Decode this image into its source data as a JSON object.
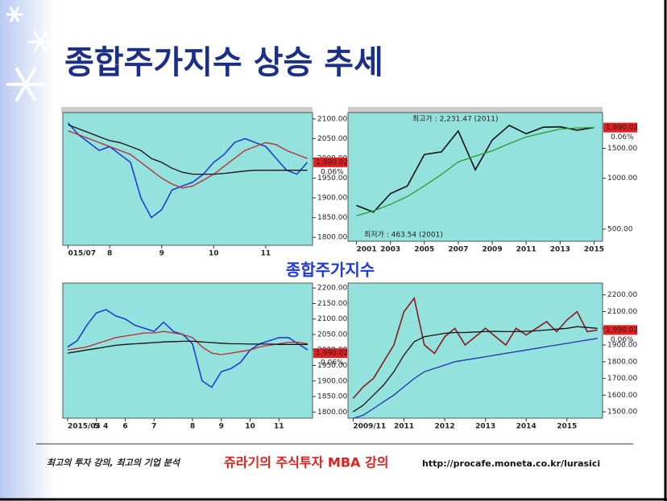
{
  "title": "종합주가지수 상승 추세",
  "panel_label": "종합주가지수",
  "footer": {
    "tagline": "최고의 투자 강의, 최고의 기업 분석",
    "course": "쥬라기의 주식투자 MBA 강의",
    "url": "http://procafe.moneta.co.kr/lurasici"
  },
  "chart_data": [
    {
      "type": "line",
      "categories": [
        "015/07",
        null,
        null,
        null,
        "8",
        null,
        null,
        null,
        null,
        "9",
        null,
        null,
        null,
        null,
        "10",
        null,
        null,
        null,
        null,
        "11",
        null,
        null,
        null,
        null
      ],
      "series": [
        {
          "name": "price",
          "color": "#1f3fd0",
          "values": [
            2090,
            2060,
            2040,
            2020,
            2030,
            2010,
            1990,
            1900,
            1850,
            1870,
            1920,
            1930,
            1940,
            1960,
            1990,
            2010,
            2040,
            2050,
            2040,
            2030,
            2000,
            1970,
            1960,
            1990
          ]
        },
        {
          "name": "ma-short",
          "color": "#c0282a",
          "values": [
            2070,
            2060,
            2050,
            2040,
            2030,
            2020,
            2010,
            1990,
            1970,
            1950,
            1935,
            1925,
            1930,
            1945,
            1960,
            1980,
            2000,
            2020,
            2030,
            2040,
            2035,
            2020,
            2010,
            2000
          ]
        },
        {
          "name": "ma-long",
          "color": "#111111",
          "values": [
            2085,
            2075,
            2065,
            2055,
            2045,
            2040,
            2030,
            2020,
            2000,
            1990,
            1975,
            1965,
            1960,
            1960,
            1960,
            1962,
            1965,
            1968,
            1970,
            1970,
            1970,
            1970,
            1970,
            1970
          ]
        }
      ],
      "ylim": [
        1780,
        2116
      ],
      "yticks": [
        {
          "value": 2100,
          "label": "2100.00"
        },
        {
          "value": 2050,
          "label": "2050.00"
        },
        {
          "value": 2000,
          "label": "2000.00"
        },
        {
          "value": 1950,
          "label": "1950.00"
        },
        {
          "value": 1900,
          "label": "1900.00"
        },
        {
          "value": 1850,
          "label": "1850.00"
        },
        {
          "value": 1800,
          "label": "1800.00"
        }
      ],
      "price_label": {
        "value": 1990.02,
        "label": "1,990.02"
      },
      "price_change": "0.06%"
    },
    {
      "type": "line",
      "log_scale": true,
      "categories": [
        "2001",
        null,
        "2003",
        null,
        "2005",
        null,
        "2007",
        null,
        "2009",
        null,
        "2011",
        null,
        "2013",
        null,
        "2015"
      ],
      "series": [
        {
          "name": "price",
          "color": "#111111",
          "values": [
            690,
            630,
            810,
            900,
            1380,
            1430,
            1900,
            1120,
            1680,
            2050,
            1830,
            2000,
            2010,
            1920,
            1990
          ]
        },
        {
          "name": "ma",
          "color": "#2a9a2a",
          "values": [
            600,
            640,
            700,
            780,
            900,
            1050,
            1250,
            1350,
            1450,
            1600,
            1750,
            1850,
            1950,
            1980,
            1990
          ]
        }
      ],
      "ylim": [
        424,
        2440
      ],
      "yticks": [
        {
          "value": 2000,
          "label": "2000.00"
        },
        {
          "value": 1500,
          "label": "1500.00"
        },
        {
          "value": 1000,
          "label": "1000.00"
        },
        {
          "value": 500,
          "label": "500.00"
        }
      ],
      "annotations": [
        "최고가 : 2,231.47 (2011)",
        "최저가 : 463.54 (2001)"
      ],
      "price_label": {
        "value": 1990.02,
        "label": "1,990.02"
      },
      "price_change": "0.06%"
    },
    {
      "type": "line",
      "categories": [
        "2015/03 4",
        null,
        null,
        "5",
        null,
        null,
        "6",
        null,
        null,
        "7",
        null,
        null,
        null,
        "8",
        null,
        null,
        "9",
        null,
        null,
        "10",
        null,
        null,
        "11",
        null,
        null,
        null
      ],
      "series": [
        {
          "name": "price",
          "color": "#1f3fd0",
          "values": [
            2010,
            2030,
            2080,
            2120,
            2130,
            2110,
            2100,
            2080,
            2070,
            2060,
            2090,
            2060,
            2050,
            2020,
            1900,
            1880,
            1930,
            1940,
            1960,
            2000,
            2020,
            2030,
            2040,
            2040,
            2020,
            2000
          ]
        },
        {
          "name": "ma-short",
          "color": "#c0282a",
          "values": [
            2000,
            2005,
            2010,
            2020,
            2030,
            2040,
            2045,
            2050,
            2055,
            2055,
            2060,
            2055,
            2050,
            2040,
            2010,
            1990,
            1985,
            1990,
            1995,
            2000,
            2010,
            2015,
            2020,
            2025,
            2025,
            2020
          ]
        },
        {
          "name": "ma-long",
          "color": "#111111",
          "values": [
            1990,
            1995,
            2000,
            2005,
            2010,
            2015,
            2018,
            2020,
            2022,
            2024,
            2026,
            2027,
            2028,
            2028,
            2026,
            2024,
            2022,
            2020,
            2020,
            2019,
            2019,
            2019,
            2018,
            2018,
            2018,
            2018
          ]
        }
      ],
      "ylim": [
        1780,
        2216
      ],
      "yticks": [
        {
          "value": 2200,
          "label": "2200.00"
        },
        {
          "value": 2150,
          "label": "2150.00"
        },
        {
          "value": 2100,
          "label": "2100.00"
        },
        {
          "value": 2050,
          "label": "2050.00"
        },
        {
          "value": 2000,
          "label": "2000.00"
        },
        {
          "value": 1950,
          "label": "1950.00"
        },
        {
          "value": 1900,
          "label": "1900.00"
        },
        {
          "value": 1850,
          "label": "1850.00"
        },
        {
          "value": 1800,
          "label": "1800.00"
        }
      ],
      "price_label": {
        "value": 1990.02,
        "label": "1,990.02"
      },
      "price_change": "0.06%"
    },
    {
      "type": "line",
      "categories": [
        "2009/11",
        null,
        null,
        null,
        null,
        "2011",
        null,
        null,
        null,
        "2012",
        null,
        null,
        null,
        "2013",
        null,
        null,
        null,
        "2014",
        null,
        null,
        null,
        "2015",
        null,
        null,
        null
      ],
      "series": [
        {
          "name": "price",
          "color": "#8a1a1a",
          "values": [
            1580,
            1650,
            1700,
            1800,
            1900,
            2100,
            2180,
            1900,
            1850,
            1950,
            2000,
            1900,
            1950,
            2000,
            1950,
            1900,
            2000,
            1960,
            2000,
            2040,
            1980,
            2050,
            2100,
            1980,
            1990
          ]
        },
        {
          "name": "ma-long",
          "color": "#111111",
          "values": [
            1500,
            1540,
            1600,
            1660,
            1740,
            1840,
            1920,
            1950,
            1960,
            1970,
            1975,
            1975,
            1978,
            1980,
            1982,
            1980,
            1980,
            1982,
            1985,
            1990,
            1995,
            2000,
            2010,
            2005,
            2000
          ]
        },
        {
          "name": "ma-slow",
          "color": "#2233aa",
          "values": [
            1460,
            1480,
            1520,
            1560,
            1600,
            1650,
            1700,
            1740,
            1760,
            1780,
            1800,
            1810,
            1820,
            1830,
            1840,
            1850,
            1860,
            1870,
            1880,
            1890,
            1900,
            1910,
            1920,
            1930,
            1940
          ]
        }
      ],
      "ylim": [
        1462,
        2271
      ],
      "yticks": [
        {
          "value": 2200,
          "label": "2200.00"
        },
        {
          "value": 2100,
          "label": "2100.00"
        },
        {
          "value": 2000,
          "label": "2000.00"
        },
        {
          "value": 1900,
          "label": "1900.00"
        },
        {
          "value": 1800,
          "label": "1800.00"
        },
        {
          "value": 1700,
          "label": "1700.00"
        },
        {
          "value": 1600,
          "label": "1600.00"
        },
        {
          "value": 1500,
          "label": "1500.00"
        }
      ],
      "price_label": {
        "value": 1990.02,
        "label": "1,990.02"
      },
      "price_change": "0.06%"
    }
  ]
}
